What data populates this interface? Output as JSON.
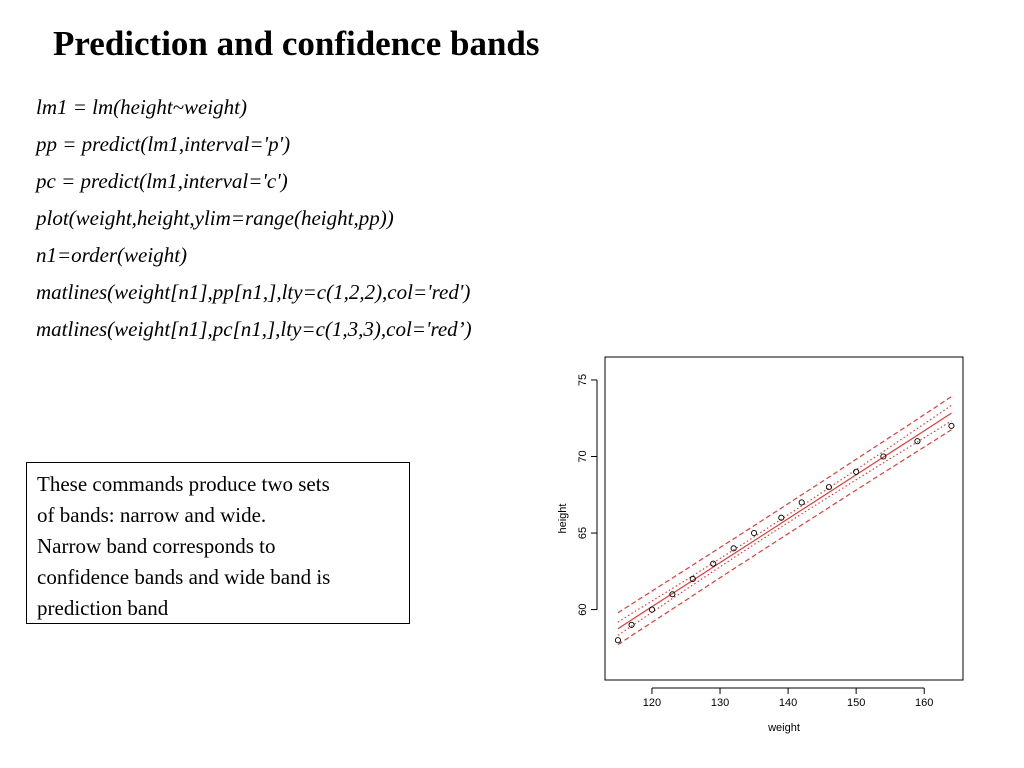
{
  "title": "Prediction and confidence bands",
  "code": [
    "lm1 = lm(height~weight)",
    "pp = predict(lm1,interval='p')",
    "pc = predict(lm1,interval='c')",
    "plot(weight,height,ylim=range(height,pp))",
    "n1=order(weight)",
    "matlines(weight[n1],pp[n1,],lty=c(1,2,2),col='red')",
    "matlines(weight[n1],pc[n1,],lty=c(1,3,3),col='red’)"
  ],
  "note": [
    "These commands produce two sets",
    "of bands: narrow and wide.",
    "Narrow band corresponds to",
    "confidence bands and wide band is",
    "prediction band"
  ],
  "chart_data": {
    "type": "scatter",
    "xlabel": "weight",
    "ylabel": "height",
    "x": [
      115,
      117,
      120,
      123,
      126,
      129,
      132,
      135,
      139,
      142,
      146,
      150,
      154,
      159,
      164
    ],
    "values": [
      58,
      59,
      60,
      61,
      62,
      63,
      64,
      65,
      66,
      67,
      68,
      69,
      70,
      71,
      72
    ],
    "color": "#000000",
    "lines": [
      {
        "style": "solid",
        "color": "#e03c3c",
        "values": [
          58.75,
          59.33,
          60.19,
          61.05,
          61.91,
          62.78,
          63.64,
          64.5,
          65.65,
          66.51,
          67.66,
          68.81,
          69.96,
          71.39,
          72.83
        ]
      },
      {
        "style": "dashed",
        "color": "#e03c3c",
        "values": [
          59.79,
          60.36,
          61.21,
          62.06,
          62.91,
          63.77,
          64.62,
          65.48,
          66.63,
          67.5,
          68.65,
          69.82,
          70.98,
          72.44,
          73.91
        ]
      },
      {
        "style": "dashed",
        "color": "#e03c3c",
        "values": [
          57.71,
          58.3,
          59.17,
          60.04,
          60.91,
          61.79,
          62.66,
          63.52,
          64.67,
          65.53,
          66.67,
          67.81,
          68.94,
          70.34,
          71.75
        ]
      },
      {
        "style": "dotted",
        "color": "#e03c3c",
        "values": [
          59.18,
          59.74,
          60.56,
          61.38,
          62.21,
          63.06,
          63.9,
          64.75,
          65.9,
          66.77,
          67.95,
          69.14,
          70.33,
          71.83,
          73.34
        ]
      },
      {
        "style": "dotted",
        "color": "#e03c3c",
        "values": [
          58.32,
          58.92,
          59.82,
          60.72,
          61.61,
          62.5,
          63.38,
          64.25,
          65.4,
          66.25,
          67.37,
          68.48,
          69.59,
          70.95,
          72.32
        ]
      }
    ],
    "xlim": [
      113.1,
      165.7
    ],
    "ylim": [
      55.4,
      76.5
    ],
    "xticks": [
      120,
      130,
      140,
      150,
      160
    ],
    "yticks": [
      60,
      65,
      70,
      75
    ]
  }
}
